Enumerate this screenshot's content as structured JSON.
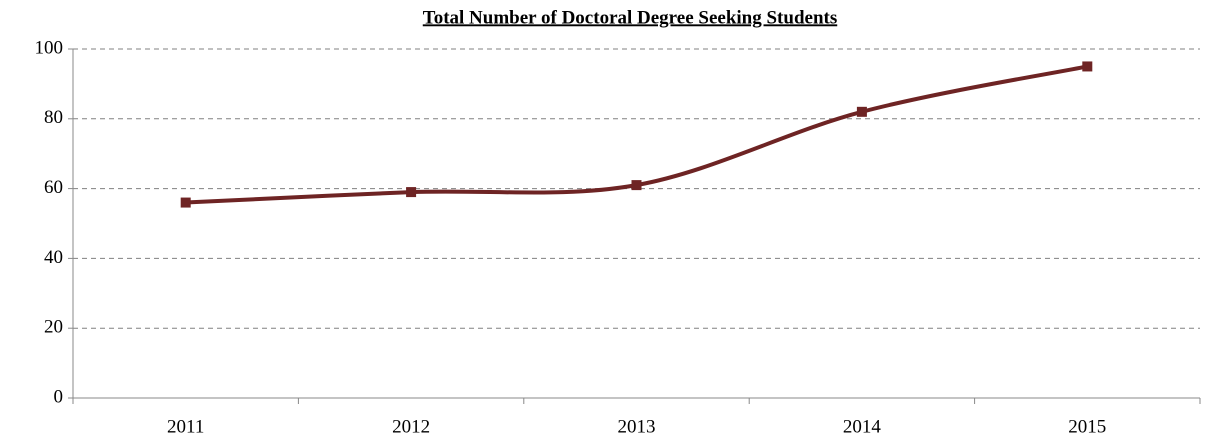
{
  "chart_data": {
    "type": "line",
    "title": "Total Number of Doctoral Degree Seeking Students",
    "categories": [
      "2011",
      "2012",
      "2013",
      "2014",
      "2015"
    ],
    "values": [
      56,
      59,
      61,
      82,
      95
    ],
    "color": "#6e2424",
    "smooth": true,
    "ylim": [
      0,
      100
    ],
    "yticks": [
      0,
      20,
      40,
      60,
      80,
      100
    ],
    "grid": true
  }
}
